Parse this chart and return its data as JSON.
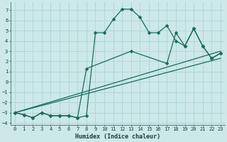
{
  "xlabel": "Humidex (Indice chaleur)",
  "bg_color": "#cce8e8",
  "grid_color": "#afd4d4",
  "line_color": "#1a6b5a",
  "xlim": [
    -0.5,
    23.5
  ],
  "ylim": [
    -4.2,
    7.8
  ],
  "yticks": [
    -4,
    -3,
    -2,
    -1,
    0,
    1,
    2,
    3,
    4,
    5,
    6,
    7
  ],
  "xticks": [
    0,
    1,
    2,
    3,
    4,
    5,
    6,
    7,
    8,
    9,
    10,
    11,
    12,
    13,
    14,
    15,
    16,
    17,
    18,
    19,
    20,
    21,
    22,
    23
  ],
  "series": [
    {
      "x": [
        0,
        1,
        2,
        3,
        4,
        5,
        6,
        7,
        8,
        9,
        10,
        11,
        12,
        13,
        14,
        15,
        16,
        17,
        18,
        19,
        20,
        21,
        22,
        23
      ],
      "y": [
        -3,
        -3.2,
        -3.5,
        -3.0,
        -3.3,
        -3.3,
        -3.3,
        -3.5,
        -3.3,
        4.8,
        4.8,
        6.1,
        7.1,
        7.1,
        6.3,
        4.8,
        4.8,
        5.5,
        4.0,
        3.5,
        5.2,
        3.5,
        2.3,
        2.8
      ],
      "marker": "D",
      "markersize": 2.5,
      "linewidth": 0.9
    },
    {
      "x": [
        0,
        1,
        2,
        3,
        4,
        5,
        6,
        7,
        8,
        13,
        17,
        18,
        19,
        20,
        21,
        22,
        23
      ],
      "y": [
        -3,
        -3.2,
        -3.5,
        -3.0,
        -3.3,
        -3.3,
        -3.3,
        -3.5,
        1.3,
        3.0,
        1.8,
        4.8,
        3.5,
        5.2,
        3.5,
        2.3,
        2.8
      ],
      "marker": "D",
      "markersize": 2.5,
      "linewidth": 0.9
    },
    {
      "x": [
        0,
        23
      ],
      "y": [
        -3,
        3.0
      ],
      "marker": null,
      "markersize": 0,
      "linewidth": 0.9
    },
    {
      "x": [
        0,
        23
      ],
      "y": [
        -3,
        2.3
      ],
      "marker": null,
      "markersize": 0,
      "linewidth": 0.9
    }
  ]
}
